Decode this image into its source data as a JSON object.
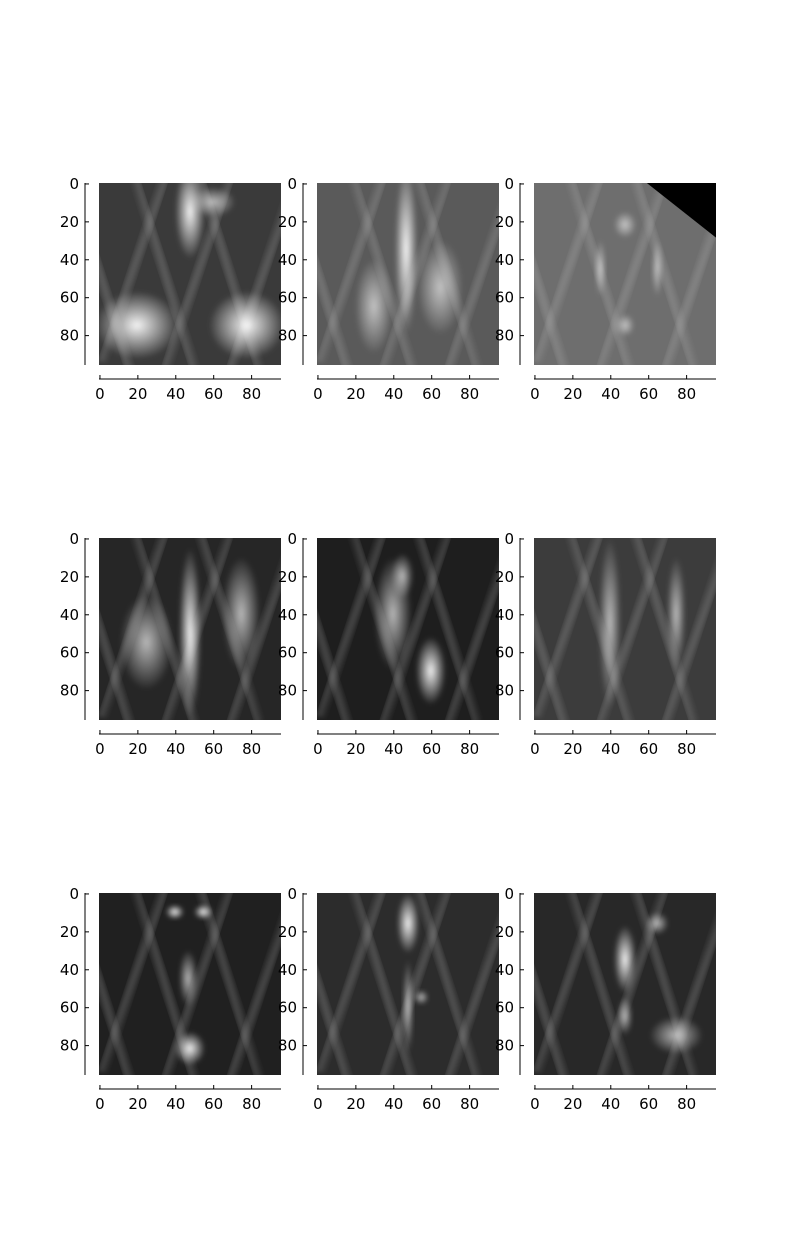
{
  "figure": {
    "colormap": "gray",
    "image_shape": [
      96,
      96
    ],
    "tick_labels": {
      "x": [
        "0",
        "20",
        "40",
        "60",
        "80"
      ],
      "y": [
        "0",
        "20",
        "40",
        "60",
        "80"
      ]
    },
    "axes_color": "#000000",
    "background": "#ffffff",
    "panels": [
      {
        "row": 0,
        "col": 0,
        "content": "grayscale-mri-slice"
      },
      {
        "row": 0,
        "col": 1,
        "content": "grayscale-mri-slice"
      },
      {
        "row": 0,
        "col": 2,
        "content": "grayscale-mri-slice"
      },
      {
        "row": 1,
        "col": 0,
        "content": "grayscale-mri-slice"
      },
      {
        "row": 1,
        "col": 1,
        "content": "grayscale-mri-slice"
      },
      {
        "row": 1,
        "col": 2,
        "content": "grayscale-mri-slice"
      },
      {
        "row": 2,
        "col": 0,
        "content": "grayscale-mri-slice"
      },
      {
        "row": 2,
        "col": 1,
        "content": "grayscale-mri-slice"
      },
      {
        "row": 2,
        "col": 2,
        "content": "grayscale-mri-slice"
      }
    ]
  }
}
